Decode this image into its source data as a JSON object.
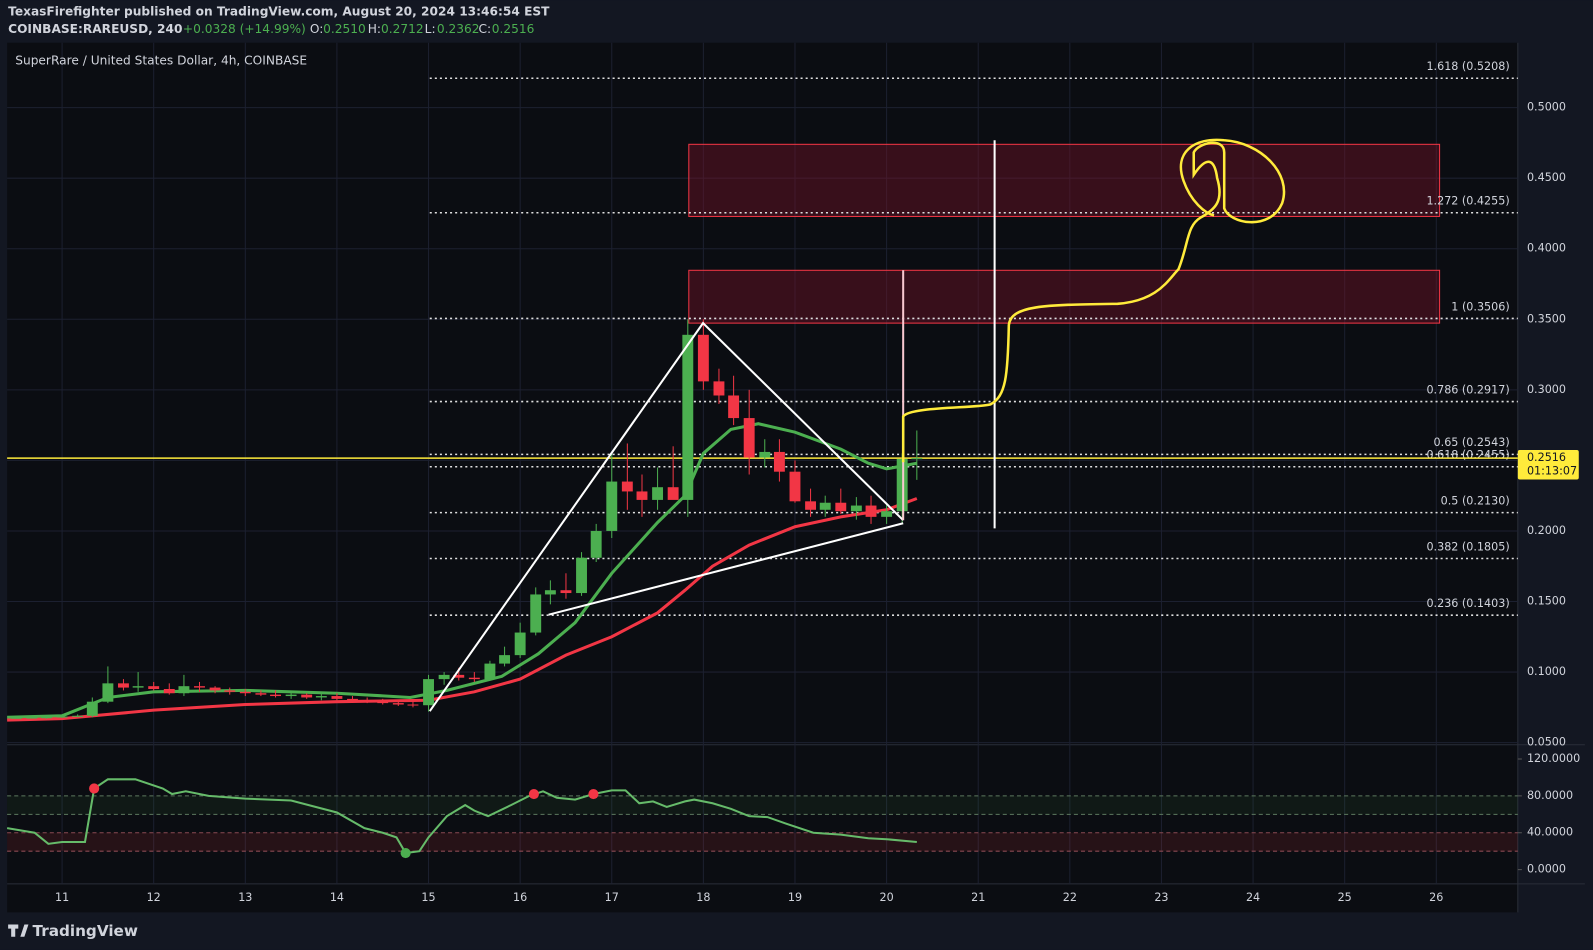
{
  "header": {
    "publisher": "TexasFirefighter published on TradingView.com, August 20, 2024 13:46:54 EST",
    "symbol": "COINBASE:RAREUSD, 240",
    "change": "+0.0328 (+14.99%)",
    "o_label": "O:",
    "o": "0.2510",
    "h_label": "H:",
    "h": "0.2712",
    "l_label": "L:",
    "l": "0.2362",
    "c_label": "C:",
    "c": "0.2516"
  },
  "footer": {
    "brand": "TradingView"
  },
  "chart_data": [
    {
      "type": "candlestick",
      "title": "SuperRare / United States Dollar, 4h, COINBASE",
      "x": [
        10.5,
        10.67,
        10.83,
        11.0,
        11.17,
        11.33,
        11.5,
        11.67,
        11.83,
        12.0,
        12.17,
        12.33,
        12.5,
        12.67,
        12.83,
        13.0,
        13.17,
        13.33,
        13.5,
        13.67,
        13.83,
        14.0,
        14.17,
        14.33,
        14.5,
        14.67,
        14.83,
        15.0,
        15.17,
        15.33,
        15.5,
        15.67,
        15.83,
        16.0,
        16.17,
        16.33,
        16.5,
        16.67,
        16.83,
        17.0,
        17.17,
        17.33,
        17.5,
        17.67,
        17.83,
        18.0,
        18.17,
        18.33,
        18.5,
        18.67,
        18.83,
        19.0,
        19.17,
        19.33,
        19.5,
        19.67,
        19.83,
        20.0,
        20.17,
        20.33
      ],
      "open": [
        0.0675,
        0.0676,
        0.0678,
        0.068,
        0.0685,
        0.069,
        0.079,
        0.092,
        0.089,
        0.09,
        0.088,
        0.085,
        0.09,
        0.089,
        0.087,
        0.086,
        0.085,
        0.084,
        0.083,
        0.084,
        0.082,
        0.083,
        0.081,
        0.08,
        0.079,
        0.078,
        0.077,
        0.0765,
        0.095,
        0.098,
        0.096,
        0.095,
        0.106,
        0.112,
        0.128,
        0.155,
        0.158,
        0.156,
        0.181,
        0.2,
        0.235,
        0.228,
        0.222,
        0.231,
        0.222,
        0.339,
        0.306,
        0.296,
        0.28,
        0.252,
        0.256,
        0.242,
        0.221,
        0.215,
        0.22,
        0.214,
        0.218,
        0.21,
        0.214,
        0.251
      ],
      "high": [
        0.068,
        0.068,
        0.069,
        0.069,
        0.07,
        0.082,
        0.104,
        0.095,
        0.1,
        0.093,
        0.092,
        0.098,
        0.093,
        0.09,
        0.089,
        0.088,
        0.087,
        0.087,
        0.086,
        0.085,
        0.085,
        0.085,
        0.083,
        0.082,
        0.081,
        0.08,
        0.079,
        0.098,
        0.1,
        0.103,
        0.1,
        0.108,
        0.118,
        0.135,
        0.16,
        0.165,
        0.17,
        0.185,
        0.205,
        0.255,
        0.262,
        0.24,
        0.245,
        0.26,
        0.35,
        0.35,
        0.315,
        0.31,
        0.3,
        0.265,
        0.265,
        0.25,
        0.23,
        0.225,
        0.23,
        0.224,
        0.225,
        0.22,
        0.255,
        0.2712
      ],
      "low": [
        0.067,
        0.067,
        0.067,
        0.0675,
        0.068,
        0.068,
        0.078,
        0.087,
        0.086,
        0.087,
        0.084,
        0.083,
        0.086,
        0.085,
        0.084,
        0.083,
        0.083,
        0.082,
        0.081,
        0.081,
        0.08,
        0.08,
        0.079,
        0.078,
        0.077,
        0.076,
        0.075,
        0.072,
        0.091,
        0.094,
        0.093,
        0.094,
        0.104,
        0.11,
        0.126,
        0.148,
        0.152,
        0.154,
        0.178,
        0.195,
        0.215,
        0.21,
        0.215,
        0.225,
        0.21,
        0.3,
        0.29,
        0.275,
        0.24,
        0.245,
        0.235,
        0.22,
        0.21,
        0.21,
        0.212,
        0.208,
        0.205,
        0.205,
        0.205,
        0.2362
      ],
      "close": [
        0.0676,
        0.0678,
        0.068,
        0.0685,
        0.069,
        0.079,
        0.092,
        0.089,
        0.09,
        0.088,
        0.085,
        0.09,
        0.089,
        0.087,
        0.086,
        0.085,
        0.084,
        0.083,
        0.084,
        0.082,
        0.083,
        0.081,
        0.08,
        0.079,
        0.078,
        0.077,
        0.0765,
        0.095,
        0.098,
        0.096,
        0.095,
        0.106,
        0.112,
        0.128,
        0.155,
        0.158,
        0.156,
        0.181,
        0.2,
        0.235,
        0.228,
        0.222,
        0.231,
        0.222,
        0.339,
        0.306,
        0.296,
        0.28,
        0.252,
        0.256,
        0.242,
        0.221,
        0.215,
        0.22,
        0.214,
        0.218,
        0.21,
        0.214,
        0.251,
        0.2516
      ],
      "up_color": "#4caf50",
      "down_color": "#f23645",
      "overlays": [
        {
          "color": "#4caf50",
          "x": [
            10.4,
            11.0,
            11.5,
            12.0,
            13.0,
            14.0,
            14.8,
            15.2,
            15.8,
            16.2,
            16.6,
            17.0,
            17.5,
            17.8,
            18.0,
            18.3,
            18.6,
            19.0,
            19.5,
            19.8,
            20.0,
            20.33
          ],
          "values": [
            0.068,
            0.069,
            0.082,
            0.086,
            0.087,
            0.085,
            0.082,
            0.087,
            0.097,
            0.113,
            0.135,
            0.17,
            0.206,
            0.225,
            0.255,
            0.272,
            0.276,
            0.27,
            0.258,
            0.248,
            0.244,
            0.248
          ]
        },
        {
          "color": "#f23645",
          "x": [
            10.4,
            11.0,
            12.0,
            13.0,
            14.0,
            15.0,
            15.5,
            16.0,
            16.5,
            17.0,
            17.5,
            17.8,
            18.1,
            18.5,
            19.0,
            19.5,
            20.0,
            20.33
          ],
          "values": [
            0.066,
            0.067,
            0.073,
            0.077,
            0.079,
            0.08,
            0.086,
            0.095,
            0.112,
            0.125,
            0.142,
            0.158,
            0.175,
            0.19,
            0.203,
            0.21,
            0.215,
            0.223
          ]
        }
      ],
      "fib_levels": [
        {
          "value": 0.5208,
          "label": "1.618 (0.5208)"
        },
        {
          "value": 0.4255,
          "label": "1.272 (0.4255)"
        },
        {
          "value": 0.3506,
          "label": "1 (0.3506)"
        },
        {
          "value": 0.2917,
          "label": "0.786 (0.2917)"
        },
        {
          "value": 0.2543,
          "label": "0.65 (0.2543)"
        },
        {
          "value": 0.2455,
          "label": "0.618 (0.2455)"
        },
        {
          "value": 0.213,
          "label": "0.5 (0.2130)"
        },
        {
          "value": 0.1805,
          "label": "0.382 (0.1805)"
        },
        {
          "value": 0.1403,
          "label": "0.236 (0.1403)"
        }
      ],
      "last_price": {
        "value": 0.2516,
        "label": "0.2516",
        "countdown": "01:13:07",
        "color": "#ffeb3b"
      },
      "xlim": [
        10.4,
        26.89
      ],
      "xticks": [
        11,
        12,
        13,
        14,
        15,
        16,
        17,
        18,
        19,
        20,
        21,
        22,
        23,
        24,
        25,
        26
      ],
      "ylim": [
        0.0485,
        0.546
      ],
      "yticks": [
        {
          "value": 0.05,
          "label": "0.0500"
        },
        {
          "value": 0.1,
          "label": "0.1000"
        },
        {
          "value": 0.15,
          "label": "0.1500"
        },
        {
          "value": 0.2,
          "label": "0.2000"
        },
        {
          "value": 0.25,
          "label": "0.2500"
        },
        {
          "value": 0.3,
          "label": "0.3000"
        },
        {
          "value": 0.35,
          "label": "0.3500"
        },
        {
          "value": 0.4,
          "label": "0.4000"
        },
        {
          "value": 0.45,
          "label": "0.4500"
        },
        {
          "value": 0.5,
          "label": "0.5000"
        }
      ],
      "grid": true
    },
    {
      "type": "line",
      "color": "#66bb6a",
      "x": [
        10.4,
        10.7,
        10.85,
        11.0,
        11.25,
        11.35,
        11.5,
        11.8,
        12.1,
        12.2,
        12.35,
        12.6,
        13.0,
        13.5,
        14.0,
        14.3,
        14.5,
        14.65,
        14.75,
        14.9,
        15.0,
        15.2,
        15.4,
        15.5,
        15.65,
        15.9,
        16.1,
        16.25,
        16.4,
        16.6,
        16.8,
        17.0,
        17.15,
        17.3,
        17.45,
        17.6,
        17.8,
        17.9,
        18.1,
        18.3,
        18.5,
        18.7,
        18.9,
        19.2,
        19.5,
        19.8,
        20.0,
        20.33
      ],
      "values": [
        45,
        40,
        28,
        30,
        30,
        88,
        98,
        98,
        88,
        82,
        85,
        80,
        77,
        75,
        62,
        45,
        40,
        35,
        18,
        20,
        35,
        58,
        70,
        64,
        58,
        70,
        80,
        85,
        78,
        76,
        82,
        86,
        86,
        72,
        74,
        68,
        74,
        76,
        72,
        66,
        58,
        57,
        50,
        40,
        38,
        34,
        33,
        30
      ],
      "signals": [
        {
          "x": 11.35,
          "value": 88,
          "color": "#f23645"
        },
        {
          "x": 16.15,
          "value": 82,
          "color": "#f23645"
        },
        {
          "x": 16.8,
          "value": 82,
          "color": "#f23645"
        },
        {
          "x": 14.75,
          "value": 18,
          "color": "#4caf50"
        }
      ],
      "bands": [
        80,
        60,
        40,
        20
      ],
      "ylim": [
        -15.5,
        135.5
      ],
      "yticks": [
        {
          "value": 0,
          "label": "0.0000"
        },
        {
          "value": 40,
          "label": "40.0000"
        },
        {
          "value": 80,
          "label": "80.0000"
        },
        {
          "value": 120,
          "label": "120.0000"
        }
      ]
    }
  ]
}
